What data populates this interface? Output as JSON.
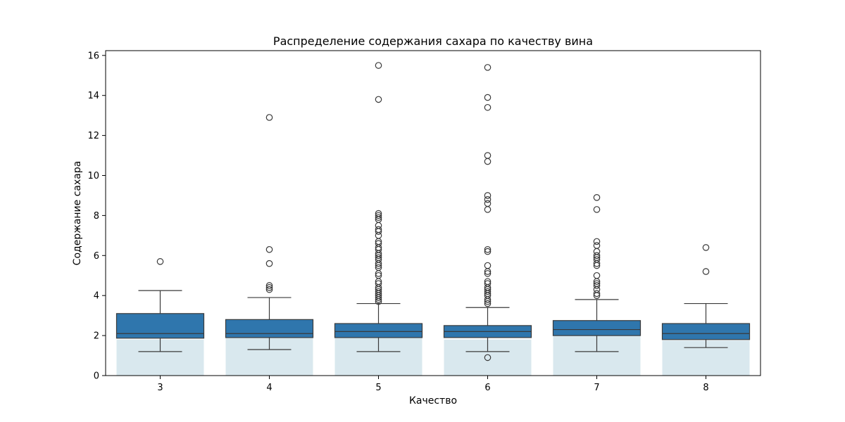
{
  "chart_data": {
    "type": "box",
    "title": "Распределение содержания сахара по качеству вина",
    "xlabel": "Качество",
    "ylabel": "Содержание сахара",
    "ylim": [
      0,
      16.2
    ],
    "yticks": [
      0,
      2,
      4,
      6,
      8,
      10,
      12,
      14,
      16
    ],
    "categories": [
      "3",
      "4",
      "5",
      "6",
      "7",
      "8"
    ],
    "grid": false,
    "colors": {
      "box": "#2f76ad",
      "line": "#3a3a3a",
      "background_bar": "#d9e8ee"
    },
    "background_bars": [
      1.8,
      1.9,
      1.9,
      1.8,
      2.0,
      1.75
    ],
    "boxes": [
      {
        "category": "3",
        "whisker_low": 1.2,
        "q1": 1.87,
        "median": 2.1,
        "q3": 3.1,
        "whisker_high": 4.25,
        "outliers": [
          5.7
        ]
      },
      {
        "category": "4",
        "whisker_low": 1.3,
        "q1": 1.9,
        "median": 2.1,
        "q3": 2.8,
        "whisker_high": 3.9,
        "outliers": [
          4.3,
          4.4,
          4.5,
          5.6,
          6.3,
          12.9
        ]
      },
      {
        "category": "5",
        "whisker_low": 1.2,
        "q1": 1.9,
        "median": 2.2,
        "q3": 2.6,
        "whisker_high": 3.6,
        "outliers": [
          3.7,
          3.8,
          3.9,
          4.0,
          4.1,
          4.2,
          4.3,
          4.4,
          4.6,
          4.7,
          5.0,
          5.1,
          5.4,
          5.5,
          5.6,
          5.8,
          5.9,
          6.0,
          6.1,
          6.3,
          6.4,
          6.6,
          6.7,
          7.0,
          7.2,
          7.3,
          7.5,
          7.8,
          7.9,
          8.0,
          8.1,
          13.8,
          15.5
        ]
      },
      {
        "category": "6",
        "whisker_low": 1.2,
        "q1": 1.9,
        "median": 2.2,
        "q3": 2.5,
        "whisker_high": 3.4,
        "lower_outliers": [
          0.9
        ],
        "outliers": [
          3.6,
          3.7,
          3.8,
          4.0,
          4.1,
          4.2,
          4.3,
          4.4,
          4.6,
          4.7,
          5.1,
          5.2,
          5.5,
          6.2,
          6.3,
          8.3,
          8.6,
          8.8,
          9.0,
          10.7,
          11.0,
          13.4,
          13.9,
          15.4
        ]
      },
      {
        "category": "7",
        "whisker_low": 1.2,
        "q1": 2.0,
        "median": 2.3,
        "q3": 2.75,
        "whisker_high": 3.8,
        "outliers": [
          4.0,
          4.1,
          4.3,
          4.5,
          4.6,
          4.7,
          5.0,
          5.5,
          5.6,
          5.8,
          5.9,
          6.0,
          6.2,
          6.5,
          6.7,
          8.3,
          8.9
        ]
      },
      {
        "category": "8",
        "whisker_low": 1.4,
        "q1": 1.8,
        "median": 2.1,
        "q3": 2.6,
        "whisker_high": 3.6,
        "outliers": [
          5.2,
          6.4
        ]
      }
    ]
  }
}
